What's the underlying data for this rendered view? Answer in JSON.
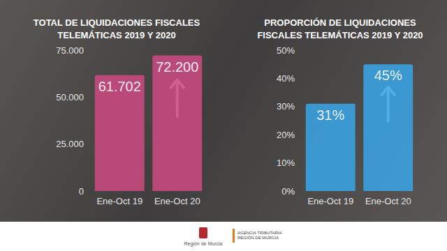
{
  "chart_data": [
    {
      "type": "bar",
      "title": "TOTAL DE LIQUIDACIONES FISCALES\nTELEMÁTICAS 2019 Y 2020",
      "categories": [
        "Ene-Oct 19",
        "Ene-Oct 20"
      ],
      "values": [
        61702,
        72200
      ],
      "value_labels": [
        "61.702",
        "72.200"
      ],
      "color": "#c94a7f",
      "ylim": [
        0,
        75000
      ],
      "yticks": [
        0,
        {
          "value": 25000,
          "label": "25.000"
        },
        {
          "value": 50000,
          "label": "50.000"
        },
        {
          "value": 75000,
          "label": "75.000"
        }
      ],
      "grid": false,
      "data_labels": true
    },
    {
      "type": "bar",
      "title": "PROPORCIÓN DE LIQUIDACIONES\nFISCALES TELEMÁTICAS 2019 Y 2020",
      "categories": [
        "Ene-Oct 19",
        "Ene-Oct 20"
      ],
      "values": [
        31,
        45
      ],
      "value_labels": [
        "31%",
        "45%"
      ],
      "color": "#3aa3e3",
      "ylim": [
        0,
        50
      ],
      "yticks": [
        {
          "value": 0,
          "label": "0%"
        },
        {
          "value": 10,
          "label": "10%"
        },
        {
          "value": 20,
          "label": "20%"
        },
        {
          "value": 30,
          "label": "30%"
        },
        {
          "value": 40,
          "label": "40%"
        },
        {
          "value": 50,
          "label": "50%"
        }
      ],
      "grid": false,
      "data_labels": true
    }
  ],
  "footer": [
    "Región de Murcia",
    "AGENCIA TRIBUTARIA REGIÓN DE MURCIA"
  ]
}
